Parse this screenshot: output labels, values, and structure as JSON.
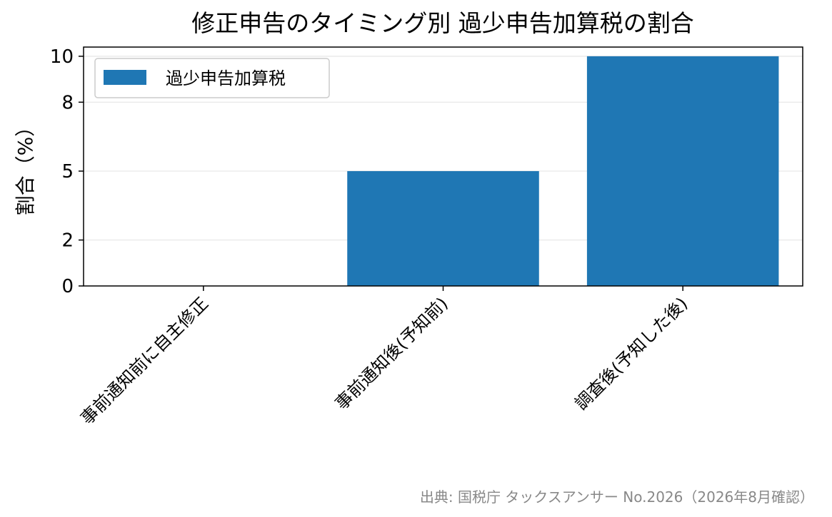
{
  "chart_data": {
    "type": "bar",
    "title": "修正申告のタイミング別 過少申告加算税の割合",
    "xlabel": "",
    "ylabel": "割合（%）",
    "categories": [
      "事前通知前に自主修正",
      "事前通知後(予知前)",
      "調査後(予知した後)"
    ],
    "series": [
      {
        "name": "過少申告加算税",
        "values": [
          0,
          5,
          10
        ],
        "color": "#1f77b4"
      }
    ],
    "ylim": [
      0,
      10.4
    ],
    "yticks": [
      0,
      2,
      5,
      8,
      10
    ],
    "grid": "y",
    "legend": "top-left",
    "source_note": "出典: 国税庁 タックスアンサー No.2026（2026年8月確認）"
  }
}
